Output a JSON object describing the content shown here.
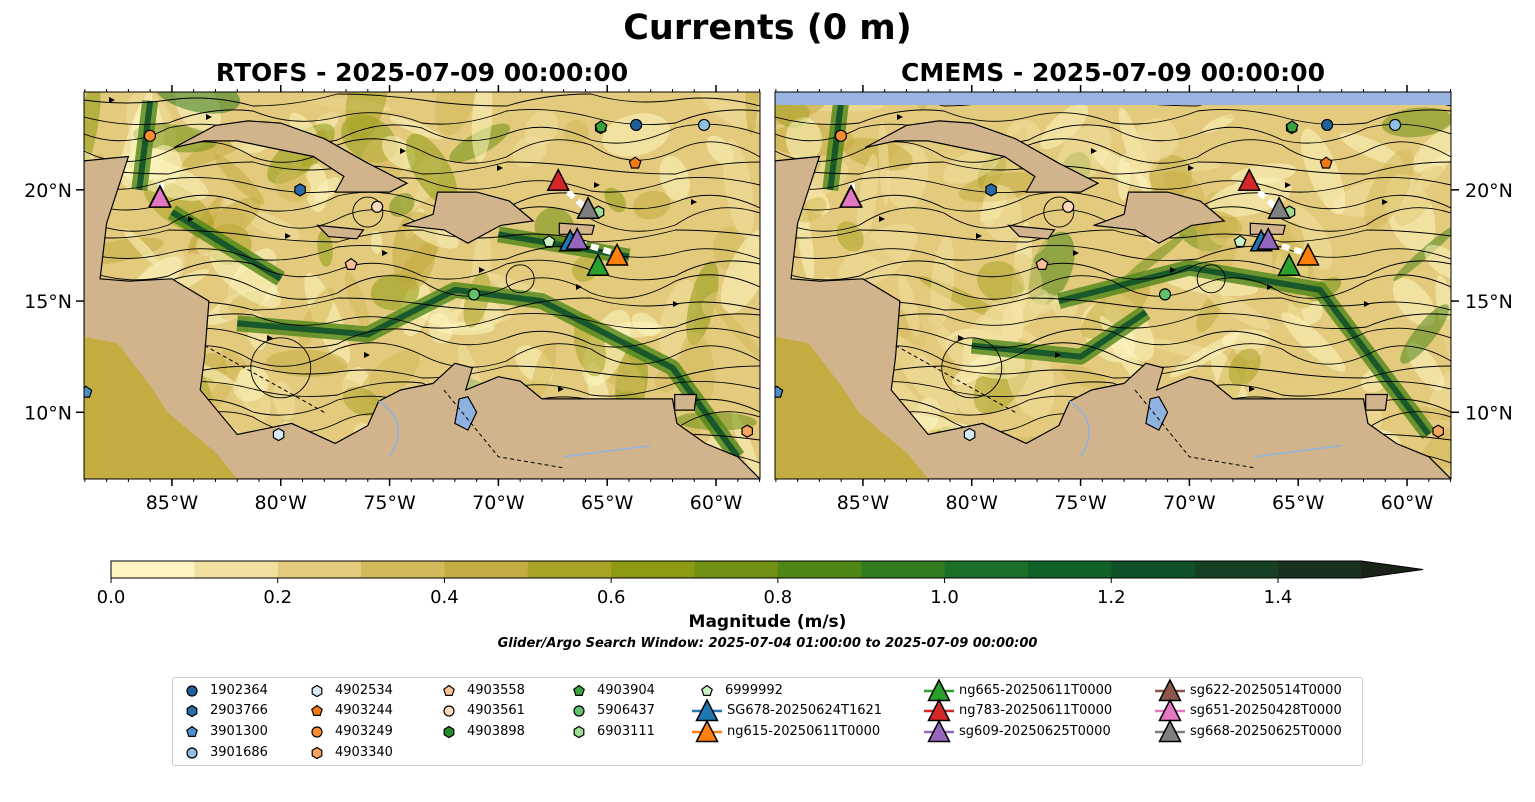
{
  "figure": {
    "title": "Currents (0 m)",
    "colorbar_label": "Magnitude (m/s)",
    "search_window": "Glider/Argo Search Window: 2025-07-04 01:00:00 to 2025-07-09 00:00:00"
  },
  "panels": [
    {
      "title": "RTOFS - 2025-07-09 00:00:00"
    },
    {
      "title": "CMEMS - 2025-07-09 00:00:00"
    }
  ],
  "chart_data": {
    "type": "map",
    "extent": {
      "lon": [
        -89.04,
        -57.98
      ],
      "lat": [
        7.0,
        24.4
      ]
    },
    "lon_ticks": [
      {
        "v": -85,
        "label": "85°W"
      },
      {
        "v": -80,
        "label": "80°W"
      },
      {
        "v": -75,
        "label": "75°W"
      },
      {
        "v": -70,
        "label": "70°W"
      },
      {
        "v": -65,
        "label": "65°W"
      },
      {
        "v": -60,
        "label": "60°W"
      }
    ],
    "lat_ticks": [
      {
        "v": 20,
        "label": "20°N"
      },
      {
        "v": 15,
        "label": "15°N"
      },
      {
        "v": 10,
        "label": "10°N"
      }
    ],
    "colorbar": {
      "min": 0,
      "max": 1.5,
      "step": 0.1,
      "extend": "max",
      "ticks": [
        {
          "v": 0,
          "label": "0.0"
        },
        {
          "v": 0.2,
          "label": "0.2"
        },
        {
          "v": 0.4,
          "label": "0.4"
        },
        {
          "v": 0.6,
          "label": "0.6"
        },
        {
          "v": 0.8,
          "label": "0.8"
        },
        {
          "v": 1.0,
          "label": "1.0"
        },
        {
          "v": 1.2,
          "label": "1.2"
        },
        {
          "v": 1.4,
          "label": "1.4"
        }
      ],
      "colors": [
        "#fdf5c1",
        "#f2e0a0",
        "#e3ca7c",
        "#d4b95a",
        "#c4ac40",
        "#a9a325",
        "#8e9a12",
        "#6f9012",
        "#4f8618",
        "#317c1f",
        "#1c6f26",
        "#0f6128",
        "#10512a",
        "#154024",
        "#18301d"
      ],
      "over_color": "#1a221a"
    },
    "floats": [
      {
        "id": "1902364",
        "shape": "circle",
        "color": "#1f5f9a",
        "lon": -63.67,
        "lat": 22.92
      },
      {
        "id": "2903766",
        "shape": "hexagon",
        "color": "#2a6aa6",
        "lon": -79.11,
        "lat": 20.0
      },
      {
        "id": "3901300",
        "shape": "pentagon",
        "color": "#4f8fc8",
        "lon": -88.95,
        "lat": 10.9
      },
      {
        "id": "3901686",
        "shape": "circle",
        "color": "#8ec0e6",
        "lon": -60.55,
        "lat": 22.92
      },
      {
        "id": "4902534",
        "shape": "hexagon",
        "color": "#d6ebf8",
        "lon": -80.1,
        "lat": 9.0
      },
      {
        "id": "4903244",
        "shape": "pentagon",
        "color": "#f07a10",
        "lon": -63.72,
        "lat": 21.2
      },
      {
        "id": "4903249",
        "shape": "circle",
        "color": "#fb8c34",
        "lon": -86.01,
        "lat": 22.43
      },
      {
        "id": "4903340",
        "shape": "hexagon",
        "color": "#fca45d",
        "lon": -58.57,
        "lat": 9.15
      },
      {
        "id": "4903558",
        "shape": "pentagon",
        "color": "#fdc096",
        "lon": -76.77,
        "lat": 16.64
      },
      {
        "id": "4903561",
        "shape": "circle",
        "color": "#fdd9bc",
        "lon": -75.57,
        "lat": 19.24
      },
      {
        "id": "4903898",
        "shape": "hexagon",
        "color": "#268b2e",
        "lon": -65.3,
        "lat": 22.8
      },
      {
        "id": "4903904",
        "shape": "pentagon",
        "color": "#3aa43c",
        "lon": -65.28,
        "lat": 22.83
      },
      {
        "id": "5906437",
        "shape": "circle",
        "color": "#62c26a",
        "lon": -71.12,
        "lat": 15.3
      },
      {
        "id": "6903111",
        "shape": "hexagon",
        "color": "#9fdc94",
        "lon": -65.4,
        "lat": 19.0
      },
      {
        "id": "6999992",
        "shape": "pentagon",
        "color": "#cbf2c5",
        "lon": -67.67,
        "lat": 17.67
      }
    ],
    "gliders": [
      {
        "id": "SG678-20250624T1621",
        "color": "#1f77b4",
        "lon": -66.7,
        "lat": 17.6
      },
      {
        "id": "ng615-20250611T0000",
        "color": "#ff7f0e",
        "lon": -64.55,
        "lat": 16.96
      },
      {
        "id": "ng665-20250611T0000",
        "color": "#2ca02c",
        "lon": -65.42,
        "lat": 16.5
      },
      {
        "id": "ng783-20250611T0000",
        "color": "#d62728",
        "lon": -67.25,
        "lat": 20.32
      },
      {
        "id": "sg609-20250625T0000",
        "color": "#9467bd",
        "lon": -66.38,
        "lat": 17.67
      },
      {
        "id": "sg622-20250514T0000",
        "color": "#8c564b",
        "lon": -85.55,
        "lat": 19.6
      },
      {
        "id": "sg651-20250428T0000",
        "color": "#e377c2",
        "lon": -85.55,
        "lat": 19.56
      },
      {
        "id": "sg668-20250625T0000",
        "color": "#7f7f7f",
        "lon": -65.88,
        "lat": 19.06
      }
    ]
  }
}
